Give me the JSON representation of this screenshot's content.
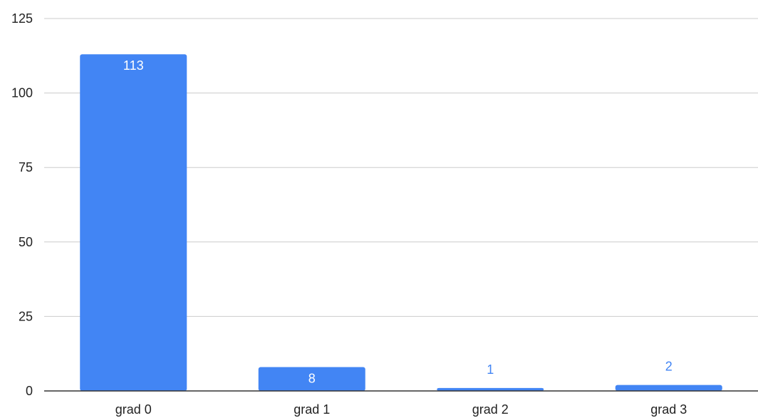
{
  "chart_data": {
    "type": "bar",
    "title": "",
    "xlabel": "",
    "ylabel": "",
    "categories": [
      "grad 0",
      "grad 1",
      "grad 2",
      "grad 3"
    ],
    "values": [
      113,
      8,
      1,
      2
    ],
    "data_labels": [
      "113",
      "8",
      "1",
      "2"
    ],
    "ylim": [
      0,
      125
    ],
    "yticks": [
      0,
      25,
      50,
      75,
      100,
      125
    ],
    "ytick_labels": [
      "0",
      "25",
      "50",
      "75",
      "100",
      "125"
    ],
    "grid": true,
    "legend": "none",
    "colors": {
      "bar": "#4285f4",
      "label_inside": "#ffffff",
      "label_outside": "#4285f4",
      "grid": "#cccccc",
      "axis": "#333333"
    }
  }
}
